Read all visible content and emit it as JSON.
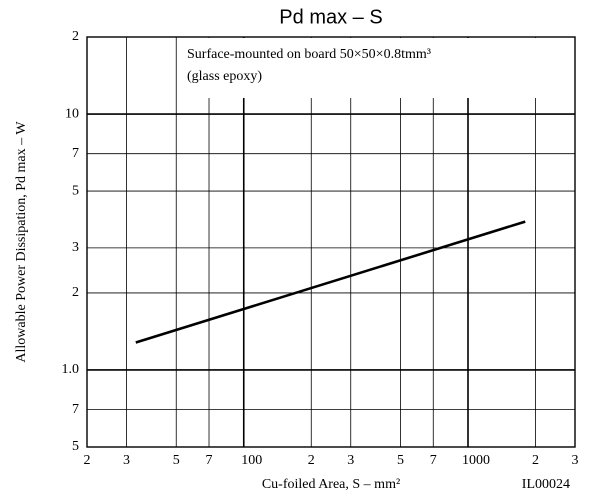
{
  "chart_data": {
    "type": "line",
    "title": "Pd max  –  S",
    "annotations": [
      "Surface-mounted on board 50×50×0.8tmm³",
      "(glass epoxy)"
    ],
    "x_label": "Cu-foiled Area, S  –  mm²",
    "y_label": "Allowable Power Dissipation, Pd max  –  W",
    "code": "IL00024",
    "log_x": true,
    "log_y": true,
    "grid": true,
    "xlim": [
      20,
      3000
    ],
    "xticks": [
      {
        "value": 20,
        "label": "2"
      },
      {
        "value": 30,
        "label": "3"
      },
      {
        "value": 50,
        "label": "5"
      },
      {
        "value": 70,
        "label": "7"
      },
      100,
      {
        "value": 200,
        "label": "2"
      },
      {
        "value": 300,
        "label": "3"
      },
      {
        "value": 500,
        "label": "5"
      },
      {
        "value": 700,
        "label": "7"
      },
      1000,
      {
        "value": 2000,
        "label": "2"
      },
      {
        "value": 3000,
        "label": "3"
      }
    ],
    "ylim": [
      0.5,
      20
    ],
    "yticks": [
      {
        "value": 0.5,
        "label": "5"
      },
      {
        "value": 0.7,
        "label": "7"
      },
      {
        "value": 1,
        "label": "1.0"
      },
      2,
      3,
      5,
      7,
      10,
      {
        "value": 20,
        "label": "2"
      }
    ],
    "series": [
      {
        "name": "Pd max",
        "color": "#000000",
        "x": [
          33,
          1800
        ],
        "values": [
          1.28,
          3.8
        ]
      }
    ]
  }
}
